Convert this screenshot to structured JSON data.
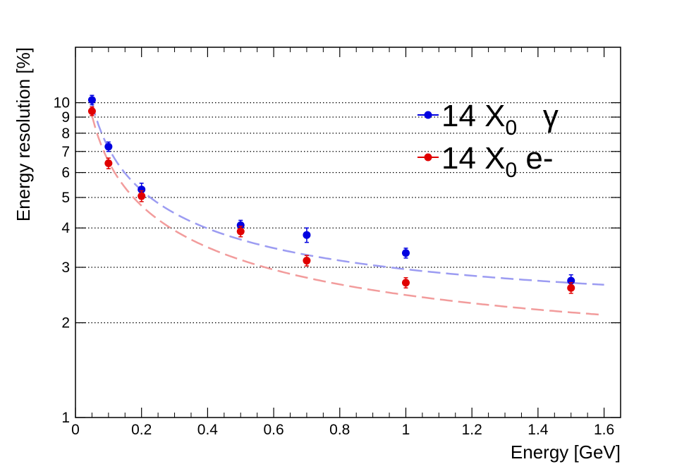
{
  "chart_data": {
    "type": "scatter",
    "title": "",
    "xlabel": "Energy [GeV]",
    "ylabel": "Energy resolution [%]",
    "xlim": [
      0,
      1.65
    ],
    "ylim": [
      1,
      15
    ],
    "yscale": "log",
    "grid": "horizontal-dotted",
    "legend_position": "top-right",
    "x_ticks": [
      {
        "value": 0,
        "label": "0"
      },
      {
        "value": 0.2,
        "label": "0.2"
      },
      {
        "value": 0.4,
        "label": "0.4"
      },
      {
        "value": 0.6,
        "label": "0.6"
      },
      {
        "value": 0.8,
        "label": "0.8"
      },
      {
        "value": 1.0,
        "label": "1"
      },
      {
        "value": 1.2,
        "label": "1.2"
      },
      {
        "value": 1.4,
        "label": "1.4"
      },
      {
        "value": 1.6,
        "label": "1.6"
      }
    ],
    "y_ticks": [
      {
        "value": 1,
        "label": "1"
      },
      {
        "value": 2,
        "label": "2"
      },
      {
        "value": 3,
        "label": "3"
      },
      {
        "value": 4,
        "label": "4"
      },
      {
        "value": 5,
        "label": "5"
      },
      {
        "value": 6,
        "label": "6"
      },
      {
        "value": 7,
        "label": "7"
      },
      {
        "value": 8,
        "label": "8"
      },
      {
        "value": 9,
        "label": "9"
      },
      {
        "value": 10,
        "label": "10"
      }
    ],
    "series": [
      {
        "legend_main": "14 X",
        "legend_sub": "0",
        "legend_suffix": "   γ",
        "color": "#0000e0",
        "fit_color": "#9c9cf2",
        "points": [
          {
            "x": 0.05,
            "y": 10.2,
            "err": 0.35
          },
          {
            "x": 0.1,
            "y": 7.25,
            "err": 0.25
          },
          {
            "x": 0.2,
            "y": 5.3,
            "err": 0.25
          },
          {
            "x": 0.5,
            "y": 4.08,
            "err": 0.15
          },
          {
            "x": 0.7,
            "y": 3.8,
            "err": 0.2
          },
          {
            "x": 1.0,
            "y": 3.33,
            "err": 0.12
          },
          {
            "x": 1.5,
            "y": 2.72,
            "err": 0.12
          }
        ],
        "fit": {
          "a": 2.18,
          "b": 2.0,
          "c": 0.0
        }
      },
      {
        "legend_main": "14 X",
        "legend_sub": "0",
        "legend_suffix": " e-",
        "color": "#e00000",
        "fit_color": "#f29c9c",
        "points": [
          {
            "x": 0.05,
            "y": 9.4,
            "err": 0.3
          },
          {
            "x": 0.1,
            "y": 6.42,
            "err": 0.25
          },
          {
            "x": 0.2,
            "y": 5.05,
            "err": 0.2
          },
          {
            "x": 0.5,
            "y": 3.9,
            "err": 0.15
          },
          {
            "x": 0.7,
            "y": 3.15,
            "err": 0.12
          },
          {
            "x": 1.0,
            "y": 2.68,
            "err": 0.1
          },
          {
            "x": 1.5,
            "y": 2.58,
            "err": 0.1
          }
        ],
        "fit": {
          "a": 2.01,
          "b": 1.4,
          "c": 0.9
        }
      }
    ]
  }
}
